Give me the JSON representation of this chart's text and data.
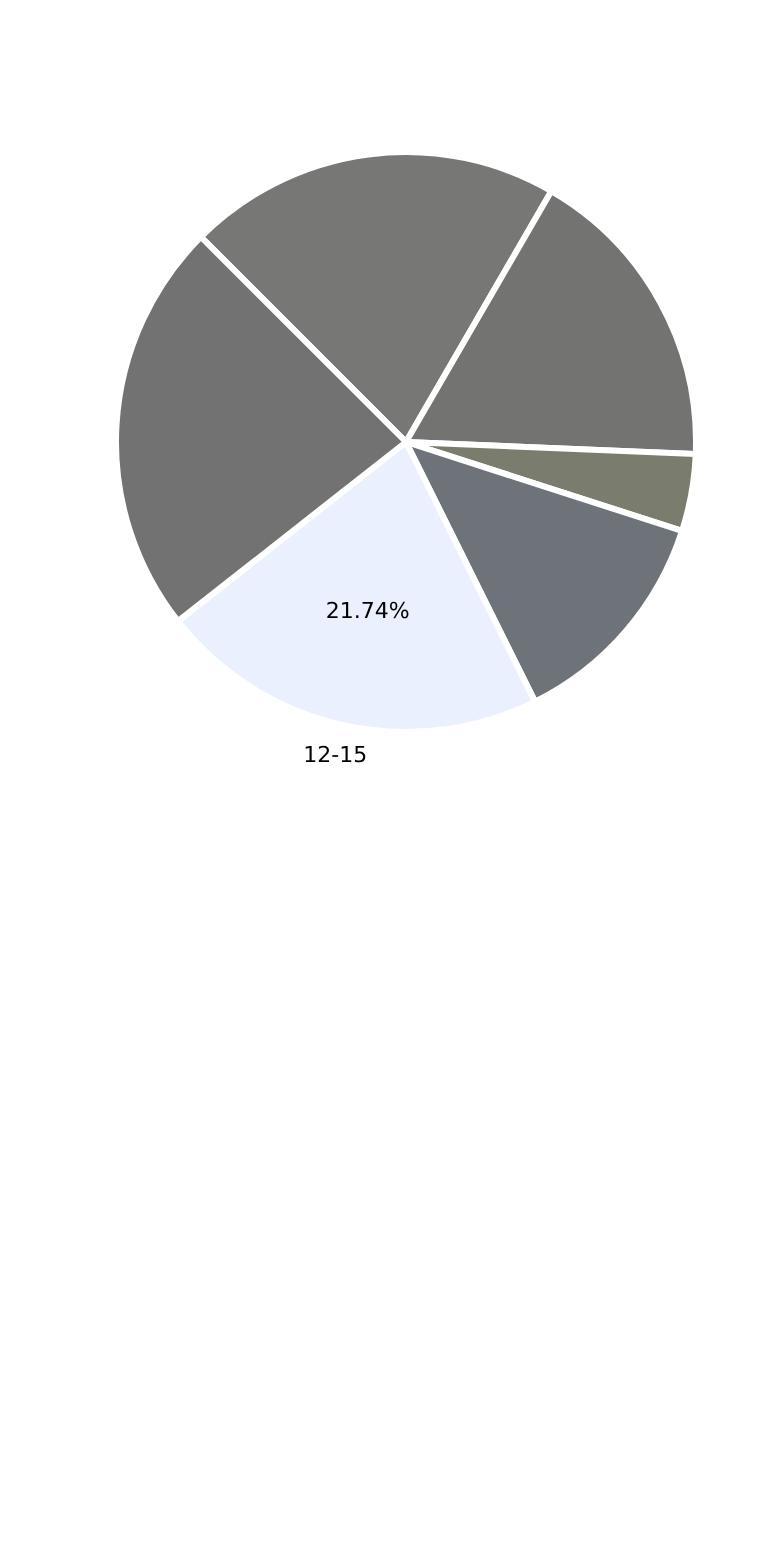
{
  "chart_data": {
    "type": "pie",
    "categories": [
      null,
      null,
      null,
      null,
      "12-15",
      null
    ],
    "values": [
      20.86,
      17.3,
      4.3,
      12.7,
      21.74,
      23.1
    ],
    "colors": [
      "#777775",
      "#737371",
      "#7a7d6e",
      "#6e737a",
      "#eaf0fd",
      "#727272"
    ],
    "value_labels": [
      null,
      null,
      null,
      null,
      "21.74%",
      null
    ],
    "legend": false
  }
}
